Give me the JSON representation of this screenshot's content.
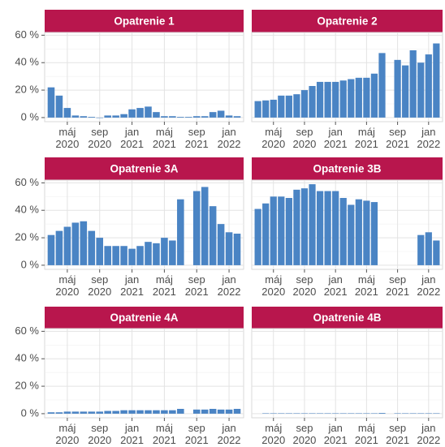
{
  "chart_data": [
    {
      "type": "bar",
      "title": "Opatrenie 1",
      "color": "#4a84c4",
      "strip_color": "#b8164d",
      "categories": [
        null,
        null,
        "máj 2020",
        null,
        null,
        null,
        "sep 2020",
        null,
        null,
        null,
        "jan 2021",
        null,
        null,
        null,
        "máj 2021",
        null,
        null,
        null,
        "sep 2021",
        null,
        null,
        null,
        "jan 2022",
        null
      ],
      "values": [
        22,
        16,
        7,
        1.5,
        1,
        0.5,
        0,
        1.5,
        1.5,
        2.5,
        6,
        7,
        8,
        4,
        1,
        1,
        0.5,
        0.5,
        1,
        1,
        4,
        5,
        1.5,
        1
      ],
      "ylim": [
        -3,
        62
      ],
      "yticks": [
        {
          "value": 0,
          "label": "0 %"
        },
        {
          "value": 20,
          "label": "20 %"
        },
        {
          "value": 40,
          "label": "40 %"
        },
        {
          "value": 60,
          "label": "60 %"
        }
      ],
      "grid": true
    },
    {
      "type": "bar",
      "title": "Opatrenie 2",
      "color": "#4a84c4",
      "strip_color": "#b8164d",
      "categories": [
        null,
        null,
        "máj 2020",
        null,
        null,
        null,
        "sep 2020",
        null,
        null,
        null,
        "jan 2021",
        null,
        null,
        null,
        "máj 2021",
        null,
        null,
        null,
        "sep 2021",
        null,
        null,
        null,
        "jan 2022",
        null
      ],
      "values": [
        12,
        12.5,
        13,
        16,
        16,
        17,
        20,
        23,
        26,
        26,
        26,
        27,
        28,
        29,
        29,
        32,
        47,
        null,
        42,
        38,
        49,
        40,
        46,
        54
      ],
      "ylim": [
        -3,
        62
      ],
      "yticks": [
        0,
        20,
        40,
        60
      ],
      "grid": true
    },
    {
      "type": "bar",
      "title": "Opatrenie 3A",
      "color": "#4a84c4",
      "strip_color": "#b8164d",
      "categories": [
        null,
        null,
        "máj 2020",
        null,
        null,
        null,
        "sep 2020",
        null,
        null,
        null,
        "jan 2021",
        null,
        null,
        null,
        "máj 2021",
        null,
        null,
        null,
        "sep 2021",
        null,
        null,
        null,
        "jan 2022",
        null
      ],
      "values": [
        22,
        25,
        28,
        31,
        32,
        25,
        20,
        14,
        14,
        14,
        12,
        14,
        17,
        16,
        20,
        18,
        48,
        null,
        54,
        57,
        43,
        30,
        24,
        23
      ],
      "ylim": [
        -3,
        62
      ],
      "yticks": [
        {
          "value": 0,
          "label": "0 %"
        },
        {
          "value": 20,
          "label": "20 %"
        },
        {
          "value": 40,
          "label": "40 %"
        },
        {
          "value": 60,
          "label": "60 %"
        }
      ],
      "grid": true
    },
    {
      "type": "bar",
      "title": "Opatrenie 3B",
      "color": "#4a84c4",
      "strip_color": "#b8164d",
      "categories": [
        null,
        null,
        "máj 2020",
        null,
        null,
        null,
        "sep 2020",
        null,
        null,
        null,
        "jan 2021",
        null,
        null,
        null,
        "máj 2021",
        null,
        null,
        null,
        "sep 2021",
        null,
        null,
        null,
        "jan 2022",
        null
      ],
      "values": [
        41,
        45,
        50,
        50,
        49,
        55,
        56,
        59,
        54,
        54,
        54,
        49,
        44,
        48,
        47,
        46,
        null,
        null,
        null,
        null,
        null,
        22,
        24,
        18
      ],
      "ylim": [
        -3,
        62
      ],
      "yticks": [
        0,
        20,
        40,
        60
      ],
      "grid": true
    },
    {
      "type": "bar",
      "title": "Opatrenie 4A",
      "color": "#4a84c4",
      "strip_color": "#b8164d",
      "categories": [
        null,
        null,
        "máj 2020",
        null,
        null,
        null,
        "sep 2020",
        null,
        null,
        null,
        "jan 2021",
        null,
        null,
        null,
        "máj 2021",
        null,
        null,
        null,
        "sep 2021",
        null,
        null,
        null,
        "jan 2022",
        null
      ],
      "values": [
        1,
        1,
        1.5,
        1.5,
        1.5,
        1.5,
        1.5,
        2,
        2,
        2.5,
        2.5,
        2.5,
        2.5,
        2.5,
        2.5,
        2.5,
        3.5,
        null,
        3,
        3,
        3.5,
        3,
        3,
        3.5
      ],
      "ylim": [
        -3,
        62
      ],
      "yticks": [
        {
          "value": 0,
          "label": "0 %"
        },
        {
          "value": 20,
          "label": "20 %"
        },
        {
          "value": 40,
          "label": "40 %"
        },
        {
          "value": 60,
          "label": "60 %"
        }
      ],
      "grid": true
    },
    {
      "type": "bar",
      "title": "Opatrenie 4B",
      "color": "#4a84c4",
      "strip_color": "#b8164d",
      "categories": [
        null,
        null,
        "máj 2020",
        null,
        null,
        null,
        "sep 2020",
        null,
        null,
        null,
        "jan 2021",
        null,
        null,
        null,
        "máj 2021",
        null,
        null,
        null,
        "sep 2021",
        null,
        null,
        null,
        "jan 2022",
        null
      ],
      "values": [
        null,
        0.3,
        0.3,
        0.3,
        0.3,
        0.3,
        0.3,
        0.3,
        0.3,
        0.3,
        0.3,
        0.3,
        0.3,
        0.3,
        0.3,
        0.3,
        0.5,
        null,
        0.3,
        0.3,
        0.3,
        0.3,
        0.3,
        0.3
      ],
      "ylim": [
        -3,
        62
      ],
      "yticks": [
        0,
        20,
        40,
        60
      ],
      "grid": true
    }
  ]
}
